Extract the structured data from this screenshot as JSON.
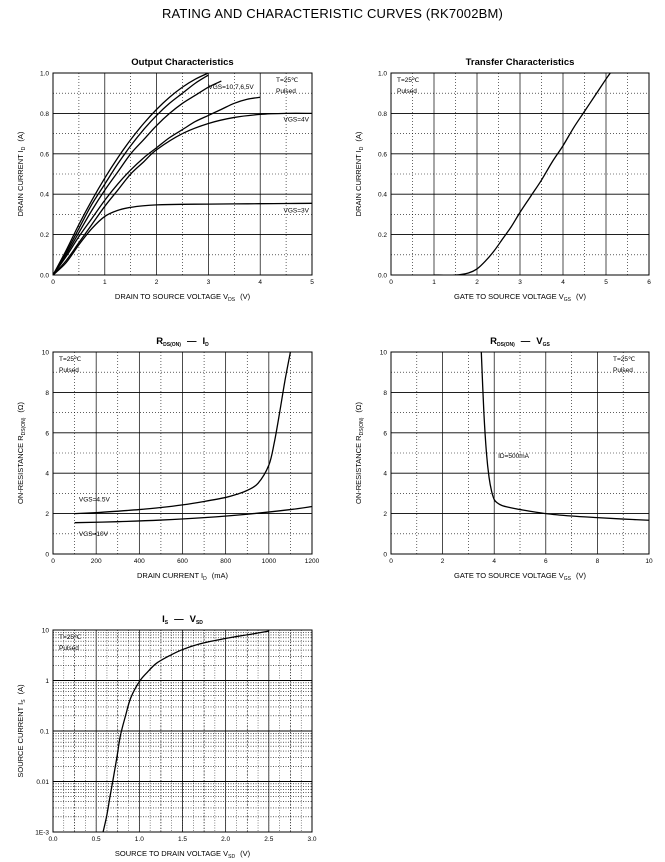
{
  "page": {
    "title": "RATING AND CHARACTERISTIC CURVES (RK7002BM)"
  },
  "chart_data": [
    {
      "id": "output",
      "type": "line",
      "title": "Output Characteristics",
      "xlabel": "DRAIN TO SOURCE VOLTAGE",
      "xlabel_sym": "V",
      "xlabel_sub": "DS",
      "xlabel_unit": "(V)",
      "ylabel": "DRAIN CURRENT",
      "ylabel_sym": "I",
      "ylabel_sub": "D",
      "ylabel_unit": "(A)",
      "xlim": [
        0,
        5
      ],
      "ylim": [
        0,
        1.0
      ],
      "xticks": [
        0,
        1,
        2,
        3,
        4,
        5
      ],
      "xtick_labels": [
        "0",
        "1",
        "2",
        "3",
        "4",
        "5"
      ],
      "yticks": [
        0,
        0.2,
        0.4,
        0.6,
        0.8,
        1.0
      ],
      "ytick_labels": [
        "0.0",
        "0.2",
        "0.4",
        "0.6",
        "0.8",
        "1.0"
      ],
      "conditions": [
        "T=25℃",
        "Pulsed"
      ],
      "series": [
        {
          "name": "VGS=10V",
          "x": [
            0,
            0.25,
            0.5,
            0.75,
            1.0,
            1.25,
            1.5,
            1.75,
            2.0,
            2.25,
            2.5,
            2.75,
            3.0
          ],
          "y": [
            0,
            0.12,
            0.25,
            0.37,
            0.48,
            0.58,
            0.67,
            0.75,
            0.82,
            0.88,
            0.93,
            0.97,
            1.0
          ]
        },
        {
          "name": "VGS=7V",
          "x": [
            0,
            0.25,
            0.5,
            0.75,
            1.0,
            1.25,
            1.5,
            1.75,
            2.0,
            2.25,
            2.5,
            2.75,
            3.0
          ],
          "y": [
            0,
            0.11,
            0.23,
            0.35,
            0.45,
            0.55,
            0.64,
            0.72,
            0.79,
            0.85,
            0.9,
            0.95,
            0.99
          ]
        },
        {
          "name": "VGS=6V",
          "x": [
            0,
            0.25,
            0.5,
            0.75,
            1.0,
            1.25,
            1.5,
            1.75,
            2.0,
            2.25,
            2.5,
            2.75,
            3.0,
            3.25
          ],
          "y": [
            0,
            0.1,
            0.21,
            0.32,
            0.42,
            0.51,
            0.6,
            0.67,
            0.74,
            0.8,
            0.85,
            0.89,
            0.93,
            0.96
          ]
        },
        {
          "name": "VGS=5V",
          "x": [
            0,
            0.25,
            0.5,
            0.75,
            1.0,
            1.25,
            1.5,
            1.75,
            2.0,
            2.25,
            2.5,
            2.75,
            3.0,
            3.25,
            3.5,
            3.75,
            4.0
          ],
          "y": [
            0,
            0.09,
            0.19,
            0.28,
            0.37,
            0.45,
            0.52,
            0.58,
            0.63,
            0.68,
            0.72,
            0.76,
            0.79,
            0.82,
            0.85,
            0.87,
            0.88
          ]
        },
        {
          "name": "VGS=4V",
          "x": [
            0,
            0.25,
            0.5,
            0.75,
            1.0,
            1.25,
            1.5,
            1.75,
            2.0,
            2.5,
            3.0,
            3.5,
            4.0,
            4.5,
            5.0
          ],
          "y": [
            0,
            0.07,
            0.16,
            0.25,
            0.34,
            0.42,
            0.5,
            0.56,
            0.62,
            0.7,
            0.75,
            0.78,
            0.795,
            0.8,
            0.8
          ]
        },
        {
          "name": "VGS=3V",
          "x": [
            0,
            0.25,
            0.5,
            0.75,
            1.0,
            1.25,
            1.5,
            1.75,
            2.0,
            2.5,
            3.0,
            3.5,
            4.0,
            4.5,
            5.0
          ],
          "y": [
            0,
            0.06,
            0.15,
            0.23,
            0.29,
            0.32,
            0.335,
            0.343,
            0.347,
            0.35,
            0.351,
            0.352,
            0.353,
            0.354,
            0.355
          ]
        }
      ],
      "annotations": [
        {
          "text": "VGS=10,7,6,5V",
          "x": 3.0,
          "y": 0.92
        },
        {
          "text": "VGS=4V",
          "x": 4.45,
          "y": 0.76
        },
        {
          "text": "VGS=3V",
          "x": 4.45,
          "y": 0.31
        }
      ]
    },
    {
      "id": "transfer",
      "type": "line",
      "title": "Transfer Characteristics",
      "xlabel": "GATE TO SOURCE VOLTAGE",
      "xlabel_sym": "V",
      "xlabel_sub": "GS",
      "xlabel_unit": "(V)",
      "ylabel": "DRAIN CURRENT",
      "ylabel_sym": "I",
      "ylabel_sub": "D",
      "ylabel_unit": "(A)",
      "xlim": [
        0,
        6
      ],
      "ylim": [
        0,
        1.0
      ],
      "xticks": [
        0,
        1,
        2,
        3,
        4,
        5,
        6
      ],
      "xtick_labels": [
        "0",
        "1",
        "2",
        "3",
        "4",
        "5",
        "6"
      ],
      "yticks": [
        0,
        0.2,
        0.4,
        0.6,
        0.8,
        1.0
      ],
      "ytick_labels": [
        "0.0",
        "0.2",
        "0.4",
        "0.6",
        "0.8",
        "1.0"
      ],
      "conditions": [
        "T=25℃",
        "Pulsed"
      ],
      "series": [
        {
          "name": "ID",
          "x": [
            1.0,
            1.5,
            1.8,
            2.0,
            2.2,
            2.4,
            2.6,
            2.8,
            3.0,
            3.25,
            3.5,
            3.75,
            4.0,
            4.25,
            4.5,
            4.75,
            5.0,
            5.1
          ],
          "y": [
            0.0,
            0.0,
            0.01,
            0.03,
            0.07,
            0.12,
            0.18,
            0.24,
            0.31,
            0.39,
            0.47,
            0.56,
            0.64,
            0.73,
            0.81,
            0.89,
            0.97,
            1.0
          ]
        }
      ]
    },
    {
      "id": "rds_id",
      "type": "line",
      "title": "RDS(ON) — ID",
      "title_parts": {
        "a": "R",
        "a_sub": "DS(ON)",
        "dash": "—",
        "b": "I",
        "b_sub": "D"
      },
      "xlabel": "DRAIN CURRENT",
      "xlabel_sym": "I",
      "xlabel_sub": "D",
      "xlabel_unit": "(mA)",
      "ylabel": "ON-RESISTANCE",
      "ylabel_sym": "R",
      "ylabel_sub": "DS(ON)",
      "ylabel_unit": "(Ω)",
      "xlim": [
        0,
        1200
      ],
      "ylim": [
        0,
        10
      ],
      "xticks": [
        0,
        200,
        400,
        600,
        800,
        1000,
        1200
      ],
      "xtick_labels": [
        "0",
        "200",
        "400",
        "600",
        "800",
        "1000",
        "1200"
      ],
      "yticks": [
        0,
        2,
        4,
        6,
        8,
        10
      ],
      "ytick_labels": [
        "0",
        "2",
        "4",
        "6",
        "8",
        "10"
      ],
      "conditions": [
        "T=25℃",
        "Pulsed"
      ],
      "series": [
        {
          "name": "VGS=4.5V",
          "x": [
            100,
            200,
            300,
            400,
            500,
            600,
            700,
            800,
            850,
            900,
            950,
            1000,
            1025,
            1050,
            1075,
            1100
          ],
          "y": [
            2.0,
            2.05,
            2.12,
            2.2,
            2.3,
            2.43,
            2.6,
            2.8,
            2.95,
            3.15,
            3.5,
            4.4,
            5.5,
            7.0,
            8.6,
            10.0
          ]
        },
        {
          "name": "VGS=10V",
          "x": [
            100,
            300,
            500,
            700,
            900,
            1100,
            1200
          ],
          "y": [
            1.55,
            1.6,
            1.68,
            1.8,
            1.97,
            2.2,
            2.35
          ]
        }
      ],
      "annotations": [
        {
          "text": "VGS=4.5V",
          "x": 120,
          "y": 2.6
        },
        {
          "text": "VGS=10V",
          "x": 120,
          "y": 0.9
        }
      ]
    },
    {
      "id": "rds_vgs",
      "type": "line",
      "title": "RDS(ON) — VGS",
      "title_parts": {
        "a": "R",
        "a_sub": "DS(ON)",
        "dash": "—",
        "b": "V",
        "b_sub": "GS"
      },
      "xlabel": "GATE TO SOURCE VOLTAGE",
      "xlabel_sym": "V",
      "xlabel_sub": "GS",
      "xlabel_unit": "(V)",
      "ylabel": "ON-RESISTANCE",
      "ylabel_sym": "R",
      "ylabel_sub": "DS(ON)",
      "ylabel_unit": "(Ω)",
      "xlim": [
        0,
        10
      ],
      "ylim": [
        0,
        10
      ],
      "xticks": [
        0,
        2,
        4,
        6,
        8,
        10
      ],
      "xtick_labels": [
        "0",
        "2",
        "4",
        "6",
        "8",
        "10"
      ],
      "yticks": [
        0,
        2,
        4,
        6,
        8,
        10
      ],
      "ytick_labels": [
        "0",
        "2",
        "4",
        "6",
        "8",
        "10"
      ],
      "conditions": [
        "T=25℃",
        "Pulsed"
      ],
      "series": [
        {
          "name": "ID=500mA",
          "x": [
            3.5,
            3.6,
            3.7,
            3.8,
            3.9,
            4.0,
            4.1,
            4.3,
            4.6,
            5.0,
            6.0,
            7.0,
            8.0,
            9.0,
            10.0
          ],
          "y": [
            10.0,
            7.0,
            5.0,
            3.8,
            3.1,
            2.7,
            2.55,
            2.4,
            2.3,
            2.2,
            2.0,
            1.88,
            1.8,
            1.73,
            1.67
          ]
        }
      ],
      "annotations": [
        {
          "text": "ID=500mA",
          "x": 4.15,
          "y": 4.75
        }
      ]
    },
    {
      "id": "is_vsd",
      "type": "line",
      "title": "IS — VSD",
      "title_parts": {
        "a": "I",
        "a_sub": "S",
        "dash": "—",
        "b": "V",
        "b_sub": "SD"
      },
      "xlabel": "SOURCE TO DRAIN VOLTAGE",
      "xlabel_sym": "V",
      "xlabel_sub": "SD",
      "xlabel_unit": "(V)",
      "ylabel": "SOURCE CURRENT",
      "ylabel_sym": "I",
      "ylabel_sub": "S",
      "ylabel_unit": "(A)",
      "xlim": [
        0,
        3.0
      ],
      "ylim": [
        0.001,
        10
      ],
      "log_y": true,
      "xticks": [
        0,
        0.5,
        1.0,
        1.5,
        2.0,
        2.5,
        3.0
      ],
      "xtick_labels": [
        "0.0",
        "0.5",
        "1.0",
        "1.5",
        "2.0",
        "2.5",
        "3.0"
      ],
      "yticks": [
        0.001,
        0.01,
        0.1,
        1,
        10
      ],
      "ytick_labels": [
        "1E-3",
        "0.01",
        "0.1",
        "1",
        "10"
      ],
      "conditions": [
        "T=25℃",
        "Pulsed"
      ],
      "series": [
        {
          "name": "IS",
          "x": [
            0.58,
            0.62,
            0.66,
            0.7,
            0.74,
            0.78,
            0.84,
            0.9,
            1.0,
            1.1,
            1.2,
            1.35,
            1.5,
            1.7,
            1.9,
            2.1,
            2.3,
            2.5
          ],
          "y": [
            0.001,
            0.002,
            0.005,
            0.012,
            0.03,
            0.08,
            0.2,
            0.45,
            0.95,
            1.5,
            2.2,
            3.1,
            4.1,
            5.3,
            6.3,
            7.3,
            8.3,
            9.5
          ]
        }
      ]
    }
  ]
}
